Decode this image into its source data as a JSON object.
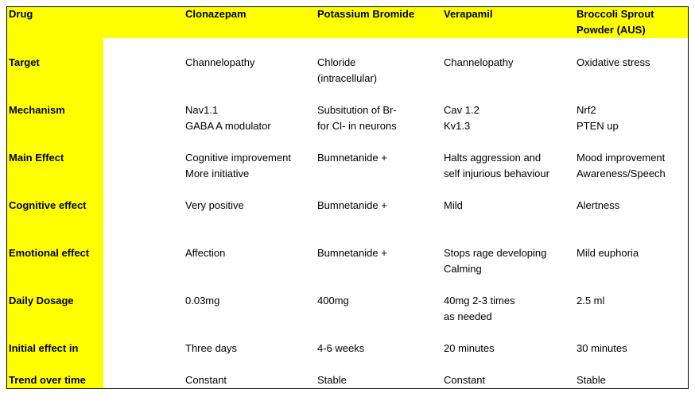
{
  "table": {
    "header": [
      [
        "Drug"
      ],
      [
        "Clonazepam"
      ],
      [
        "Potassium Bromide"
      ],
      [
        "Verapamil"
      ],
      [
        "Broccoli Sprout",
        "Powder (AUS)"
      ]
    ],
    "rows": [
      [
        [
          "Target"
        ],
        [
          "Channelopathy"
        ],
        [
          "Chloride",
          "(intracellular)"
        ],
        [
          "Channelopathy"
        ],
        [
          "Oxidative stress"
        ]
      ],
      [
        [
          "Mechanism"
        ],
        [
          "Nav1.1",
          "GABA A modulator"
        ],
        [
          "Subsitution of Br-",
          "for Cl- in neurons"
        ],
        [
          "Cav 1.2",
          "Kv1.3"
        ],
        [
          "Nrf2",
          "PTEN up"
        ]
      ],
      [
        [
          "Main Effect"
        ],
        [
          "Cognitive improvement",
          "More initiative"
        ],
        [
          "Bumnetanide +"
        ],
        [
          "Halts aggression and",
          "self injurious behaviour"
        ],
        [
          "Mood improvement",
          "Awareness/Speech"
        ]
      ],
      [
        [
          "Cognitive effect"
        ],
        [
          "Very positive"
        ],
        [
          "Bumnetanide +"
        ],
        [
          "Mild"
        ],
        [
          "Alertness"
        ]
      ],
      [
        [
          "Emotional effect"
        ],
        [
          "Affection"
        ],
        [
          "Bumnetanide +"
        ],
        [
          "Stops rage developing",
          "Calming"
        ],
        [
          "Mild euphoria"
        ]
      ],
      [
        [
          "Daily Dosage"
        ],
        [
          "0.03mg"
        ],
        [
          "400mg"
        ],
        [
          "40mg 2-3 times",
          "as needed"
        ],
        [
          "2.5 ml"
        ]
      ],
      [
        [
          "Initial effect in"
        ],
        [
          "Three days"
        ],
        [
          "4-6 weeks"
        ],
        [
          "20 minutes"
        ],
        [
          "30 minutes"
        ]
      ],
      [
        [
          "Trend over time"
        ],
        [
          "Constant"
        ],
        [
          "Stable"
        ],
        [
          "Constant"
        ],
        [
          "Stable"
        ]
      ]
    ]
  }
}
